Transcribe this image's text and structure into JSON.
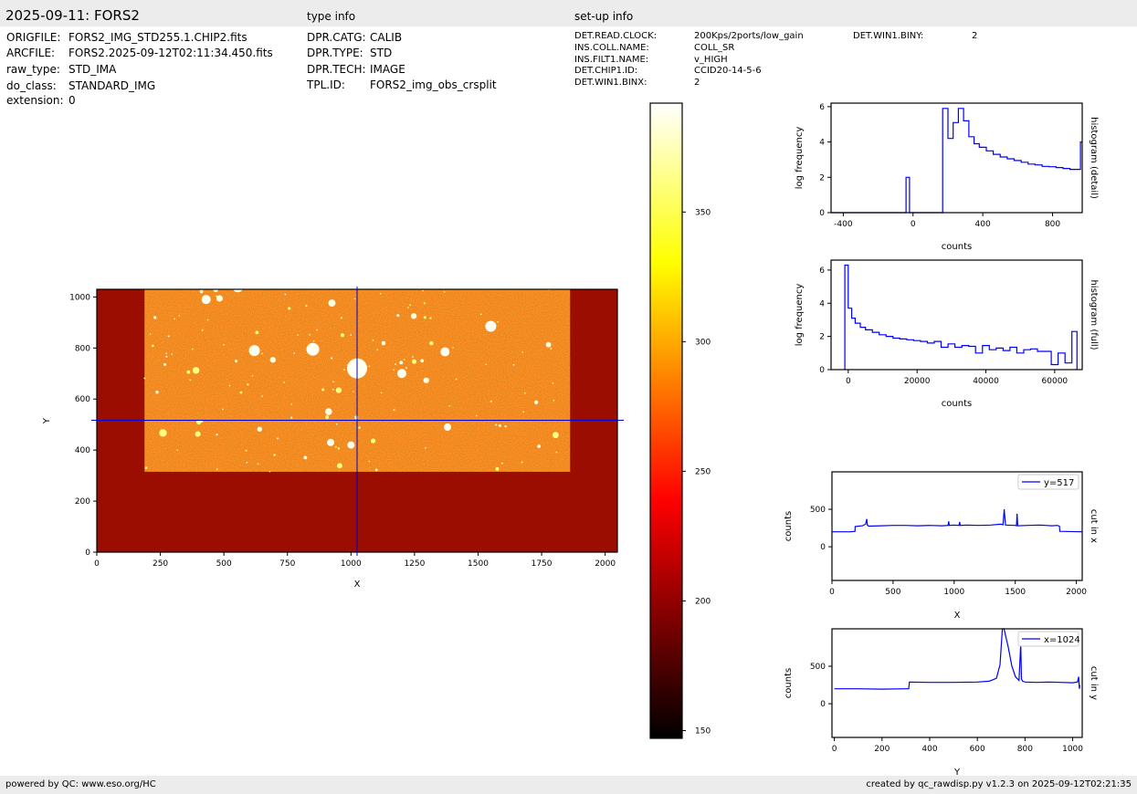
{
  "header": {
    "title": "2025-09-11: FORS2",
    "type_info_title": "type info",
    "setup_info_title": "set-up info"
  },
  "file_info": [
    {
      "key": "ORIGFILE:",
      "value": "FORS2_IMG_STD255.1.CHIP2.fits"
    },
    {
      "key": "ARCFILE:",
      "value": "FORS2.2025-09-12T02:11:34.450.fits"
    },
    {
      "key": "raw_type:",
      "value": "STD_IMA"
    },
    {
      "key": "do_class:",
      "value": "STANDARD_IMG"
    },
    {
      "key": "extension:",
      "value": "0"
    }
  ],
  "type_info": [
    {
      "key": "DPR.CATG:",
      "value": "CALIB"
    },
    {
      "key": "DPR.TYPE:",
      "value": "STD"
    },
    {
      "key": "DPR.TECH:",
      "value": "IMAGE"
    },
    {
      "key": "TPL.ID:",
      "value": "FORS2_img_obs_crsplit"
    }
  ],
  "setup_info": [
    {
      "key": "DET.READ.CLOCK:",
      "value": "200Kps/2ports/low_gain"
    },
    {
      "key": "INS.COLL.NAME:",
      "value": "COLL_SR"
    },
    {
      "key": "INS.FILT1.NAME:",
      "value": "v_HIGH"
    },
    {
      "key": "DET.CHIP1.ID:",
      "value": "CCID20-14-5-6"
    },
    {
      "key": "DET.WIN1.BINX:",
      "value": "2"
    }
  ],
  "setup_info_extra": {
    "key": "DET.WIN1.BINY:",
    "value": "2"
  },
  "footer": {
    "left": "powered by QC: www.eso.org/HC",
    "right": "created by qc_rawdisp.py v1.2.3 on 2025-09-12T02:21:35"
  },
  "colors": {
    "line": "#0000ff",
    "header_bg": "#ececec",
    "cross": "#0000cc"
  },
  "chart_data": [
    {
      "id": "image",
      "type": "heatmap",
      "xlabel": "X",
      "ylabel": "Y",
      "xlim": [
        0,
        2048
      ],
      "ylim": [
        0,
        1030
      ],
      "xticks": [
        0,
        250,
        500,
        750,
        1000,
        1250,
        1500,
        1750,
        2000
      ],
      "yticks": [
        0,
        200,
        400,
        600,
        800,
        1000
      ],
      "cut_x": 1024,
      "cut_y": 517,
      "illuminated_region": {
        "x": [
          188,
          1862
        ],
        "y": [
          315,
          1030
        ]
      },
      "colormap": "hot"
    },
    {
      "id": "colorbar",
      "type": "colorbar",
      "range": [
        147,
        392
      ],
      "ticks": [
        150,
        200,
        250,
        300,
        350
      ]
    },
    {
      "id": "hist_detail",
      "type": "line",
      "xlabel": "counts",
      "ylabel": "log frequency",
      "side_label": "histogram (detail)",
      "xlim": [
        -470,
        970
      ],
      "ylim": [
        0,
        6.2
      ],
      "xticks": [
        -400,
        0,
        400,
        800
      ],
      "yticks": [
        0,
        2,
        4,
        6
      ],
      "x": [
        -470,
        -40,
        -40,
        -20,
        -20,
        170,
        170,
        200,
        200,
        230,
        230,
        260,
        260,
        290,
        290,
        320,
        320,
        350,
        350,
        380,
        380,
        420,
        420,
        460,
        460,
        500,
        500,
        540,
        540,
        580,
        580,
        620,
        620,
        660,
        660,
        700,
        700,
        740,
        740,
        780,
        780,
        820,
        820,
        860,
        860,
        900,
        900,
        940,
        940,
        960,
        960,
        970
      ],
      "y": [
        0,
        0,
        2.0,
        2.0,
        0,
        0,
        5.9,
        5.9,
        4.2,
        4.2,
        5.1,
        5.1,
        5.9,
        5.9,
        5.2,
        5.2,
        4.3,
        4.3,
        3.9,
        3.9,
        3.7,
        3.7,
        3.5,
        3.5,
        3.3,
        3.3,
        3.15,
        3.15,
        3.05,
        3.05,
        2.95,
        2.95,
        2.85,
        2.85,
        2.75,
        2.75,
        2.7,
        2.7,
        2.62,
        2.62,
        2.6,
        2.6,
        2.55,
        2.55,
        2.5,
        2.5,
        2.45,
        2.45,
        2.45,
        2.45,
        4.0,
        4.0
      ]
    },
    {
      "id": "hist_full",
      "type": "line",
      "xlabel": "counts",
      "ylabel": "log frequency",
      "side_label": "histogram (full)",
      "xlim": [
        -5000,
        68000
      ],
      "ylim": [
        0,
        6.6
      ],
      "xticks": [
        0,
        20000,
        40000,
        60000
      ],
      "yticks": [
        0,
        2,
        4,
        6
      ],
      "x": [
        -1000,
        -1000,
        0,
        0,
        1000,
        1000,
        2000,
        2000,
        3500,
        3500,
        5000,
        5000,
        7000,
        7000,
        9000,
        9000,
        11000,
        11000,
        13000,
        13000,
        15000,
        15000,
        17000,
        17000,
        19000,
        19000,
        21000,
        21000,
        23000,
        23000,
        25000,
        25000,
        27000,
        27000,
        29000,
        29000,
        31000,
        31000,
        33000,
        33000,
        35000,
        35000,
        37000,
        37000,
        39000,
        39000,
        41000,
        41000,
        43000,
        43000,
        45000,
        45000,
        47000,
        47000,
        49000,
        49000,
        51000,
        51000,
        53000,
        53000,
        55000,
        55000,
        57000,
        57000,
        59000,
        59000,
        61000,
        61000,
        63000,
        63000,
        65000,
        65000,
        66500,
        66500
      ],
      "y": [
        0,
        6.3,
        6.3,
        3.7,
        3.7,
        3.1,
        3.1,
        2.8,
        2.8,
        2.55,
        2.55,
        2.4,
        2.4,
        2.25,
        2.25,
        2.1,
        2.1,
        2.0,
        2.0,
        1.9,
        1.9,
        1.85,
        1.85,
        1.8,
        1.8,
        1.75,
        1.75,
        1.7,
        1.7,
        1.6,
        1.6,
        1.7,
        1.7,
        1.35,
        1.35,
        1.55,
        1.55,
        1.35,
        1.35,
        1.45,
        1.45,
        1.4,
        1.4,
        1.0,
        1.0,
        1.45,
        1.45,
        1.2,
        1.2,
        1.3,
        1.3,
        1.15,
        1.15,
        1.35,
        1.35,
        1.0,
        1.0,
        1.2,
        1.2,
        1.25,
        1.25,
        1.1,
        1.1,
        1.1,
        1.1,
        0.3,
        0.3,
        1.0,
        1.0,
        0.4,
        0.4,
        2.3,
        2.3,
        0
      ]
    },
    {
      "id": "cut_x",
      "type": "line",
      "xlabel": "X",
      "ylabel": "counts",
      "side_label": "cut in x",
      "legend": "y=517",
      "xlim": [
        0,
        2048
      ],
      "ylim": [
        -450,
        1000
      ],
      "xticks": [
        0,
        500,
        1000,
        1500,
        2000
      ],
      "yticks": [
        0,
        500
      ],
      "x": [
        0,
        150,
        188,
        190,
        250,
        275,
        285,
        290,
        300,
        400,
        500,
        600,
        700,
        800,
        900,
        950,
        955,
        960,
        1000,
        1040,
        1045,
        1050,
        1100,
        1200,
        1300,
        1380,
        1400,
        1410,
        1420,
        1500,
        1510,
        1515,
        1520,
        1600,
        1700,
        1800,
        1845,
        1862,
        1865,
        2048
      ],
      "y": [
        200,
        200,
        205,
        270,
        280,
        300,
        370,
        290,
        275,
        280,
        285,
        285,
        280,
        285,
        280,
        285,
        340,
        285,
        290,
        285,
        330,
        285,
        290,
        285,
        290,
        300,
        295,
        500,
        290,
        285,
        280,
        440,
        280,
        285,
        290,
        280,
        285,
        275,
        205,
        200
      ]
    },
    {
      "id": "cut_y",
      "type": "line",
      "xlabel": "Y",
      "ylabel": "counts",
      "side_label": "cut in y",
      "legend": "x=1024",
      "xlim": [
        -10,
        1040
      ],
      "ylim": [
        -450,
        1000
      ],
      "xticks": [
        0,
        200,
        400,
        600,
        800,
        1000
      ],
      "yticks": [
        0,
        500
      ],
      "x": [
        0,
        100,
        200,
        300,
        312,
        315,
        400,
        500,
        600,
        650,
        680,
        695,
        705,
        712,
        730,
        745,
        760,
        775,
        782,
        785,
        790,
        800,
        850,
        900,
        950,
        1000,
        1020,
        1025,
        1028,
        1030
      ],
      "y": [
        200,
        200,
        195,
        200,
        200,
        290,
        285,
        285,
        290,
        300,
        340,
        520,
        1000,
        1000,
        750,
        500,
        360,
        310,
        800,
        330,
        300,
        290,
        285,
        290,
        285,
        280,
        290,
        360,
        200,
        250
      ]
    }
  ]
}
